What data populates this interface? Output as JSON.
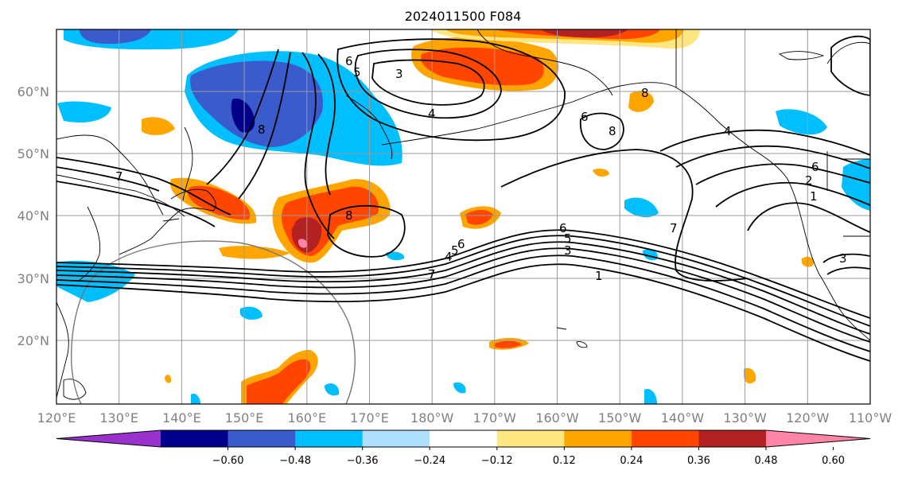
{
  "title": "2024011500 F084",
  "map": {
    "lat_labels": [
      "60°N",
      "50°N",
      "40°N",
      "30°N",
      "20°N"
    ],
    "lon_labels": [
      "120°E",
      "130°E",
      "140°E",
      "150°E",
      "160°E",
      "170°E",
      "180°W",
      "170°W",
      "160°W",
      "150°W",
      "140°W",
      "130°W",
      "120°W",
      "110°W"
    ],
    "contour_labels": [
      "6",
      "5",
      "3",
      "4",
      "8",
      "8",
      "6",
      "8",
      "7",
      "8",
      "6",
      "5",
      "4",
      "7",
      "6",
      "5",
      "3",
      "1",
      "7",
      "4",
      "2",
      "1",
      "3",
      "6"
    ]
  },
  "colorbar": {
    "tick_labels": [
      "−0.60",
      "−0.48",
      "−0.36",
      "−0.24",
      "−0.12",
      "0.12",
      "0.24",
      "0.36",
      "0.48",
      "0.60"
    ],
    "colors": [
      "#9932cc",
      "#00008b",
      "#3a5bcc",
      "#00bfff",
      "#b0e0ff",
      "#ffffff",
      "#ffe680",
      "#ffa500",
      "#ff4500",
      "#b22222",
      "#ff85a8"
    ]
  }
}
